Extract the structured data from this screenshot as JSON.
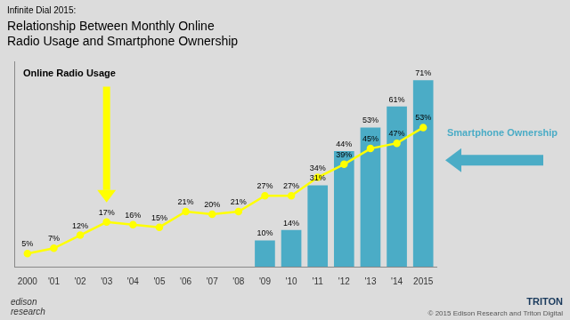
{
  "chart_data": {
    "type": "bar",
    "subtitle": "Infinite Dial 2015:",
    "title": [
      "Relationship Between Monthly Online",
      "Radio Usage and Smartphone Ownership"
    ],
    "categories": [
      "2000",
      "'01",
      "'02",
      "'03",
      "'04",
      "'05",
      "'06",
      "'07",
      "'08",
      "'09",
      "'10",
      "'11",
      "'12",
      "'13",
      "'14",
      "2015"
    ],
    "series": [
      {
        "name": "Smartphone Ownership",
        "type": "bar",
        "color": "#4BACC6",
        "values": [
          null,
          null,
          null,
          null,
          null,
          null,
          null,
          null,
          null,
          10,
          14,
          31,
          44,
          53,
          61,
          71
        ],
        "value_labels": [
          null,
          null,
          null,
          null,
          null,
          null,
          null,
          null,
          null,
          "10%",
          "14%",
          "31%",
          "44%",
          "53%",
          "61%",
          "71%"
        ]
      },
      {
        "name": "Online Radio Usage",
        "type": "line",
        "color": "#FFFF00",
        "marker": "circle",
        "values": [
          5,
          7,
          12,
          17,
          16,
          15,
          21,
          20,
          21,
          27,
          27,
          34,
          39,
          45,
          47,
          53
        ],
        "value_labels": [
          "5%",
          "7%",
          "12%",
          "17%",
          "16%",
          "15%",
          "21%",
          "20%",
          "21%",
          "27%",
          "27%",
          "34%",
          "39%",
          "45%",
          "47%",
          "53%"
        ]
      }
    ],
    "ylim": [
      0,
      78
    ],
    "grid": false,
    "tick_labels": "x",
    "data_labels": true,
    "annotations": [
      "Online Radio Usage",
      "Smartphone Ownership",
      "© 2015 Edison Research and Triton Digital",
      "edison\nresearch",
      "TRITON"
    ]
  }
}
